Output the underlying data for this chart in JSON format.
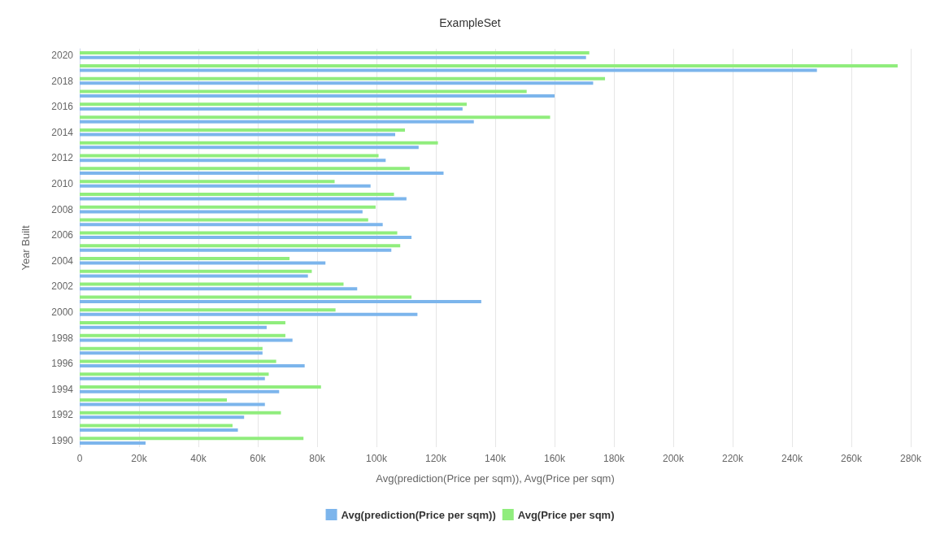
{
  "chart_data": {
    "type": "bar",
    "orientation": "horizontal",
    "title": "ExampleSet",
    "xlabel": "Avg(prediction(Price per sqm)), Avg(Price per sqm)",
    "ylabel": "Year Built",
    "categories": [
      "2020",
      null,
      "2018",
      null,
      "2016",
      null,
      "2014",
      null,
      "2012",
      null,
      "2010",
      null,
      "2008",
      null,
      "2006",
      null,
      "2004",
      null,
      "2002",
      null,
      "2000",
      null,
      "1998",
      null,
      "1996",
      null,
      "1994",
      null,
      "1992",
      null,
      "1990"
    ],
    "series": [
      {
        "name": "Avg(prediction(Price per sqm))",
        "color": "#7cb5ec",
        "values": [
          170600,
          248400,
          173000,
          160000,
          129000,
          132800,
          106300,
          114200,
          103100,
          122600,
          98000,
          110100,
          95300,
          102100,
          111800,
          105000,
          82800,
          76900,
          93500,
          135300,
          113800,
          63000,
          71700,
          61600,
          75800,
          62400,
          67200,
          62400,
          55400,
          53300,
          22200
        ]
      },
      {
        "name": "Avg(Price per sqm)",
        "color": "#90ed7d",
        "values": [
          171700,
          275600,
          177000,
          150600,
          130400,
          158500,
          109600,
          120700,
          100700,
          111200,
          85900,
          105900,
          99700,
          97200,
          107000,
          108000,
          70700,
          78200,
          88900,
          111800,
          86200,
          69300,
          69300,
          61600,
          66200,
          63700,
          81300,
          49600,
          67800,
          51500,
          75400
        ]
      }
    ],
    "xlim": [
      0,
      280000
    ],
    "xticks": [
      {
        "value": 0,
        "label": "0"
      },
      {
        "value": 20000,
        "label": "20k"
      },
      {
        "value": 40000,
        "label": "40k"
      },
      {
        "value": 60000,
        "label": "60k"
      },
      {
        "value": 80000,
        "label": "80k"
      },
      {
        "value": 100000,
        "label": "100k"
      },
      {
        "value": 120000,
        "label": "120k"
      },
      {
        "value": 140000,
        "label": "140k"
      },
      {
        "value": 160000,
        "label": "160k"
      },
      {
        "value": 180000,
        "label": "180k"
      },
      {
        "value": 200000,
        "label": "200k"
      },
      {
        "value": 220000,
        "label": "220k"
      },
      {
        "value": 240000,
        "label": "240k"
      },
      {
        "value": 260000,
        "label": "260k"
      },
      {
        "value": 280000,
        "label": "280k"
      }
    ],
    "grid": "x",
    "legend": "bottom"
  }
}
